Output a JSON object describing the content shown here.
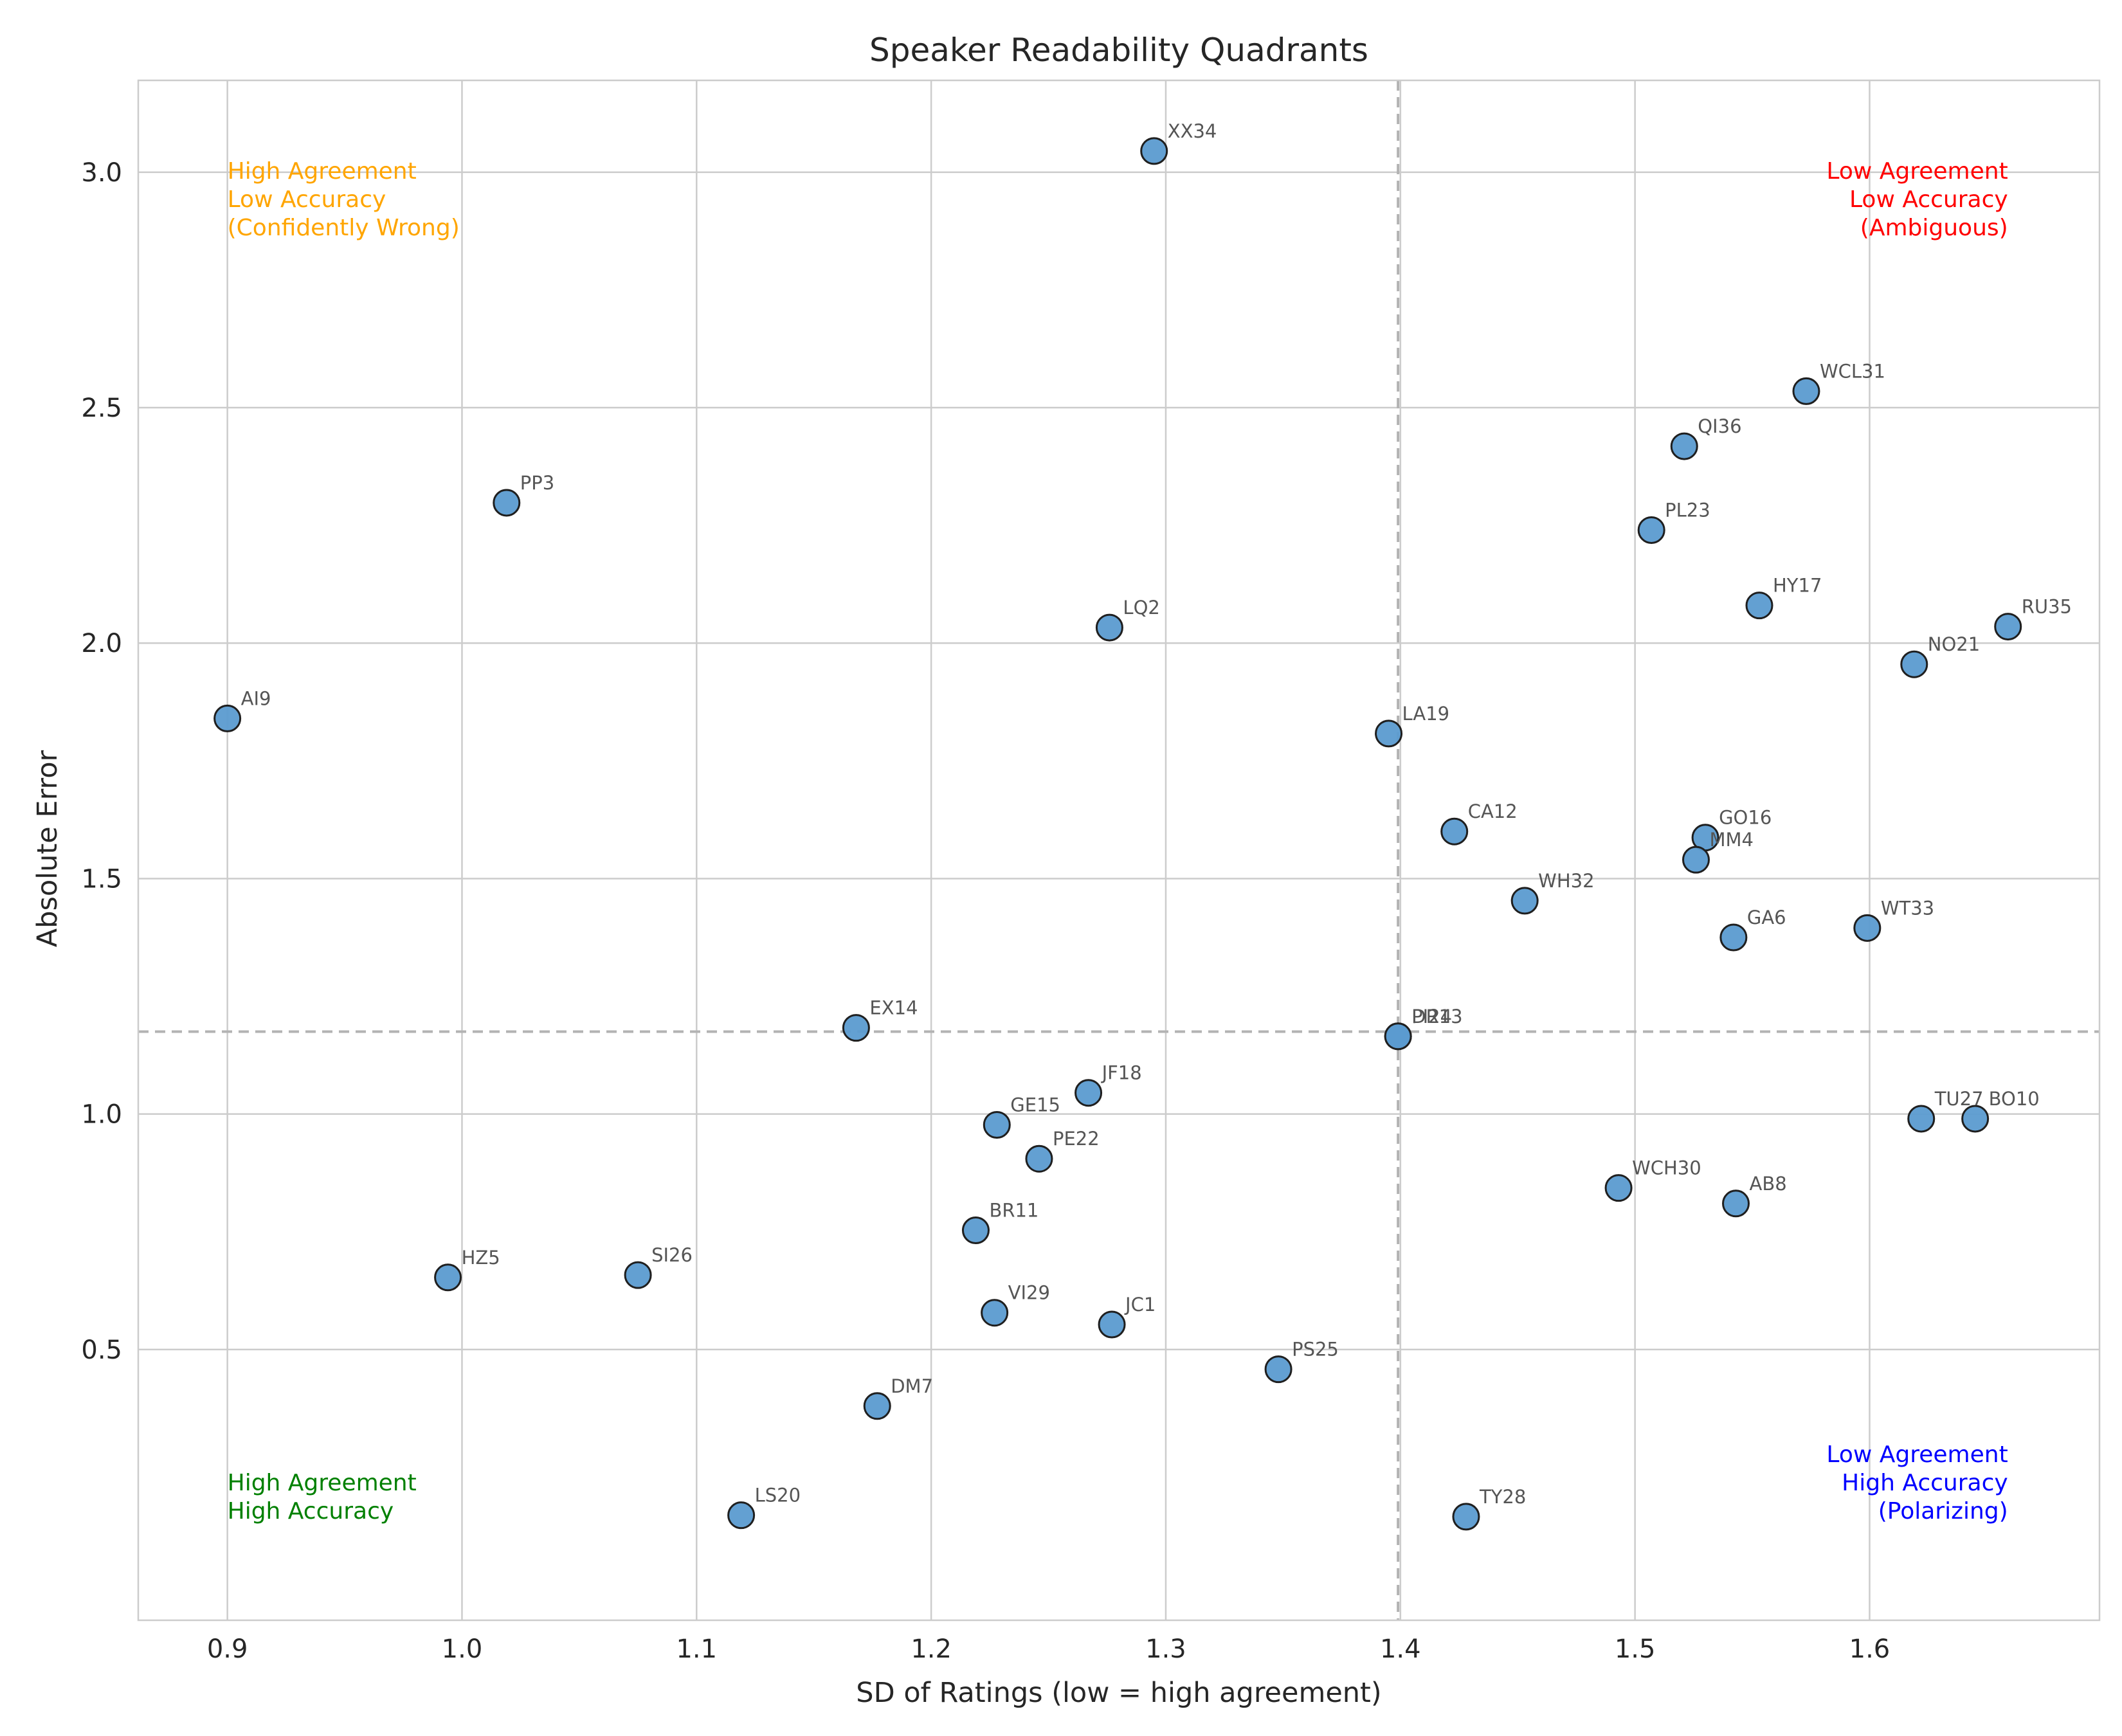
{
  "chart_data": {
    "type": "scatter",
    "title": "Speaker Readability Quadrants",
    "xlabel": "SD of Ratings (low = high agreement)",
    "ylabel": "Absolute Error",
    "xlim": [
      0.862,
      1.698
    ],
    "ylim": [
      -0.075,
      3.195
    ],
    "xticks": [
      0.9,
      1.0,
      1.1,
      1.2,
      1.3,
      1.4,
      1.5,
      1.6
    ],
    "xtick_labels": [
      "0.9",
      "1.0",
      "1.1",
      "1.2",
      "1.3",
      "1.4",
      "1.5",
      "1.6"
    ],
    "yticks": [
      0.5,
      1.0,
      1.5,
      2.0,
      2.5,
      3.0
    ],
    "ytick_labels": [
      "0.5",
      "1.0",
      "1.5",
      "2.0",
      "2.5",
      "3.0"
    ],
    "grid": true,
    "reference_lines": {
      "x": 1.399,
      "y": 1.175
    },
    "point_color": "#5b9bd0",
    "quadrant_labels": [
      {
        "lines": [
          "High Agreement",
          "Low Accuracy",
          "(Confidently Wrong)"
        ],
        "color": "#ffa500",
        "x": 0.9,
        "y": 3.03,
        "align": "left",
        "valign": "top"
      },
      {
        "lines": [
          "Low Agreement",
          "Low Accuracy",
          "(Ambiguous)"
        ],
        "color": "#ff0000",
        "x": 1.659,
        "y": 3.03,
        "align": "right",
        "valign": "top"
      },
      {
        "lines": [
          "High Agreement",
          "High Accuracy"
        ],
        "color": "#008000",
        "x": 0.9,
        "y": 0.13,
        "align": "left",
        "valign": "bottom"
      },
      {
        "lines": [
          "Low Agreement",
          "High Accuracy",
          "(Polarizing)"
        ],
        "color": "#0000ff",
        "x": 1.659,
        "y": 0.13,
        "align": "right",
        "valign": "bottom"
      }
    ],
    "points": [
      {
        "label": "XX34",
        "x": 1.295,
        "y": 3.045
      },
      {
        "label": "WCL31",
        "x": 1.573,
        "y": 2.535
      },
      {
        "label": "QI36",
        "x": 1.521,
        "y": 2.418
      },
      {
        "label": "PP3",
        "x": 1.019,
        "y": 2.298
      },
      {
        "label": "PL23",
        "x": 1.507,
        "y": 2.24
      },
      {
        "label": "HY17",
        "x": 1.553,
        "y": 2.08
      },
      {
        "label": "RU35",
        "x": 1.659,
        "y": 2.035
      },
      {
        "label": "LQ2",
        "x": 1.276,
        "y": 2.033
      },
      {
        "label": "NO21",
        "x": 1.619,
        "y": 1.955
      },
      {
        "label": "AI9",
        "x": 0.9,
        "y": 1.84
      },
      {
        "label": "LA19",
        "x": 1.395,
        "y": 1.808
      },
      {
        "label": "CA12",
        "x": 1.423,
        "y": 1.6
      },
      {
        "label": "GO16",
        "x": 1.53,
        "y": 1.587
      },
      {
        "label": "MM4",
        "x": 1.526,
        "y": 1.54
      },
      {
        "label": "WH32",
        "x": 1.453,
        "y": 1.453
      },
      {
        "label": "WT33",
        "x": 1.599,
        "y": 1.395
      },
      {
        "label": "GA6",
        "x": 1.542,
        "y": 1.375
      },
      {
        "label": "EX14",
        "x": 1.168,
        "y": 1.183
      },
      {
        "label": "DR13",
        "x": 1.399,
        "y": 1.165
      },
      {
        "label": "PI24",
        "x": 1.399,
        "y": 1.165
      },
      {
        "label": "JF18",
        "x": 1.267,
        "y": 1.045
      },
      {
        "label": "TU27",
        "x": 1.622,
        "y": 0.99
      },
      {
        "label": "BO10",
        "x": 1.645,
        "y": 0.99
      },
      {
        "label": "GE15",
        "x": 1.228,
        "y": 0.977
      },
      {
        "label": "PE22",
        "x": 1.246,
        "y": 0.905
      },
      {
        "label": "WCH30",
        "x": 1.493,
        "y": 0.843
      },
      {
        "label": "AB8",
        "x": 1.543,
        "y": 0.81
      },
      {
        "label": "BR11",
        "x": 1.219,
        "y": 0.753
      },
      {
        "label": "SI26",
        "x": 1.075,
        "y": 0.658
      },
      {
        "label": "HZ5",
        "x": 0.994,
        "y": 0.653
      },
      {
        "label": "VI29",
        "x": 1.227,
        "y": 0.578
      },
      {
        "label": "JC1",
        "x": 1.277,
        "y": 0.553
      },
      {
        "label": "PS25",
        "x": 1.348,
        "y": 0.458
      },
      {
        "label": "DM7",
        "x": 1.177,
        "y": 0.38
      },
      {
        "label": "LS20",
        "x": 1.119,
        "y": 0.148
      },
      {
        "label": "TY28",
        "x": 1.428,
        "y": 0.145
      }
    ]
  }
}
